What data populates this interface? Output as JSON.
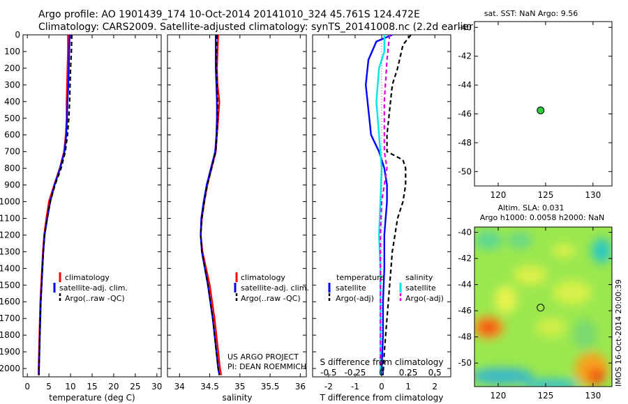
{
  "header": {
    "line1": "Argo profile: AO 1901439_174 10-Oct-2014 20141010_324 45.761S 124.472E",
    "line2": "Climatology: CARS2009. Satellite-adjusted climatology: synTS_20141008.nc (2.2d earlier)"
  },
  "colors": {
    "climatology": "#ff0000",
    "satellite": "#0000ff",
    "argo": "#000000",
    "sal_satellite": "#00e5e5",
    "sal_argo": "#e000e0",
    "point": "#2ecc40"
  },
  "chart_data": [
    {
      "type": "line",
      "panel": "temperature",
      "xlabel": "temperature (deg C)",
      "ylabel": "",
      "xlim": [
        -1,
        31
      ],
      "ylim": [
        2050,
        0
      ],
      "xticks": [
        0,
        5,
        10,
        15,
        20,
        25,
        30
      ],
      "yticks": [
        0,
        100,
        200,
        300,
        400,
        500,
        600,
        700,
        800,
        900,
        1000,
        1100,
        1200,
        1300,
        1400,
        1500,
        1600,
        1700,
        1800,
        1900,
        2000
      ],
      "legend": [
        "climatology",
        "satellite-adj. clim.",
        "Argo(..raw -QC)"
      ],
      "series": [
        {
          "name": "climatology",
          "color": "#ff0000",
          "dash": "",
          "points": [
            [
              9.4,
              0
            ],
            [
              9.4,
              100
            ],
            [
              9.3,
              200
            ],
            [
              9.2,
              300
            ],
            [
              9.1,
              400
            ],
            [
              9.1,
              500
            ],
            [
              8.9,
              600
            ],
            [
              8.5,
              700
            ],
            [
              7.5,
              800
            ],
            [
              6.2,
              900
            ],
            [
              5.0,
              1000
            ],
            [
              4.4,
              1100
            ],
            [
              3.9,
              1200
            ],
            [
              3.6,
              1300
            ],
            [
              3.4,
              1400
            ],
            [
              3.2,
              1500
            ],
            [
              3.0,
              1600
            ],
            [
              2.9,
              1700
            ],
            [
              2.8,
              1800
            ],
            [
              2.7,
              1900
            ],
            [
              2.6,
              2000
            ],
            [
              2.6,
              2040
            ]
          ]
        },
        {
          "name": "satellite-adj. clim.",
          "color": "#0000ff",
          "dash": "",
          "points": [
            [
              9.8,
              0
            ],
            [
              9.7,
              100
            ],
            [
              9.6,
              200
            ],
            [
              9.5,
              300
            ],
            [
              9.3,
              400
            ],
            [
              9.2,
              500
            ],
            [
              9.0,
              600
            ],
            [
              8.6,
              700
            ],
            [
              7.6,
              800
            ],
            [
              6.3,
              900
            ],
            [
              5.3,
              1000
            ],
            [
              4.6,
              1100
            ],
            [
              4.0,
              1200
            ],
            [
              3.7,
              1300
            ],
            [
              3.5,
              1400
            ],
            [
              3.3,
              1500
            ],
            [
              3.1,
              1600
            ],
            [
              3.0,
              1700
            ],
            [
              2.9,
              1800
            ],
            [
              2.8,
              1900
            ],
            [
              2.7,
              2000
            ],
            [
              2.7,
              2040
            ]
          ]
        },
        {
          "name": "Argo(..raw -QC)",
          "color": "#000000",
          "dash": "6,4",
          "points": [
            [
              10.3,
              0
            ],
            [
              10.2,
              100
            ],
            [
              10.0,
              200
            ],
            [
              9.9,
              300
            ],
            [
              9.8,
              400
            ],
            [
              9.6,
              500
            ],
            [
              9.3,
              600
            ],
            [
              8.8,
              700
            ],
            [
              7.8,
              800
            ],
            [
              6.4,
              900
            ],
            [
              5.3,
              1000
            ],
            [
              4.6,
              1100
            ],
            [
              4.0,
              1200
            ],
            [
              3.7,
              1300
            ],
            [
              3.5,
              1400
            ],
            [
              3.3,
              1500
            ],
            [
              3.1,
              1600
            ],
            [
              3.0,
              1700
            ],
            [
              2.9,
              1800
            ],
            [
              2.8,
              1900
            ],
            [
              2.7,
              2000
            ],
            [
              2.7,
              2040
            ]
          ]
        }
      ]
    },
    {
      "type": "line",
      "panel": "salinity",
      "xlabel": "salinity",
      "ylabel": "",
      "xlim": [
        33.8,
        36.1
      ],
      "ylim": [
        2050,
        0
      ],
      "xticks": [
        34,
        34.5,
        35,
        35.5,
        36
      ],
      "legend": [
        "climatology",
        "satellite-adj. clim.",
        "Argo(..raw -QC)"
      ],
      "annotation": [
        "US ARGO PROJECT",
        "PI: DEAN ROEMMICH"
      ],
      "series": [
        {
          "name": "climatology",
          "color": "#ff0000",
          "dash": "",
          "points": [
            [
              34.64,
              0
            ],
            [
              34.63,
              100
            ],
            [
              34.62,
              200
            ],
            [
              34.63,
              300
            ],
            [
              34.66,
              400
            ],
            [
              34.64,
              500
            ],
            [
              34.62,
              600
            ],
            [
              34.6,
              700
            ],
            [
              34.53,
              800
            ],
            [
              34.46,
              900
            ],
            [
              34.41,
              1000
            ],
            [
              34.37,
              1100
            ],
            [
              34.35,
              1200
            ],
            [
              34.38,
              1300
            ],
            [
              34.44,
              1400
            ],
            [
              34.5,
              1500
            ],
            [
              34.54,
              1600
            ],
            [
              34.58,
              1700
            ],
            [
              34.61,
              1800
            ],
            [
              34.64,
              1900
            ],
            [
              34.67,
              2000
            ],
            [
              34.69,
              2040
            ]
          ]
        },
        {
          "name": "satellite-adj. clim.",
          "color": "#0000ff",
          "dash": "",
          "points": [
            [
              34.6,
              0
            ],
            [
              34.6,
              100
            ],
            [
              34.6,
              200
            ],
            [
              34.61,
              300
            ],
            [
              34.62,
              400
            ],
            [
              34.62,
              500
            ],
            [
              34.61,
              600
            ],
            [
              34.59,
              700
            ],
            [
              34.52,
              800
            ],
            [
              34.45,
              900
            ],
            [
              34.4,
              1000
            ],
            [
              34.36,
              1100
            ],
            [
              34.35,
              1200
            ],
            [
              34.37,
              1300
            ],
            [
              34.42,
              1400
            ],
            [
              34.47,
              1500
            ],
            [
              34.51,
              1600
            ],
            [
              34.55,
              1700
            ],
            [
              34.58,
              1800
            ],
            [
              34.61,
              1900
            ],
            [
              34.64,
              2000
            ],
            [
              34.66,
              2040
            ]
          ]
        },
        {
          "name": "Argo(..raw -QC)",
          "color": "#000000",
          "dash": "6,4",
          "points": [
            [
              34.62,
              0
            ],
            [
              34.61,
              100
            ],
            [
              34.61,
              200
            ],
            [
              34.62,
              300
            ],
            [
              34.63,
              400
            ],
            [
              34.63,
              500
            ],
            [
              34.62,
              600
            ],
            [
              34.6,
              700
            ],
            [
              34.53,
              800
            ],
            [
              34.46,
              900
            ],
            [
              34.41,
              1000
            ],
            [
              34.37,
              1100
            ],
            [
              34.35,
              1200
            ],
            [
              34.37,
              1300
            ],
            [
              34.42,
              1400
            ],
            [
              34.47,
              1500
            ],
            [
              34.51,
              1600
            ],
            [
              34.55,
              1700
            ],
            [
              34.58,
              1800
            ],
            [
              34.61,
              1900
            ],
            [
              34.64,
              2000
            ],
            [
              34.66,
              2040
            ]
          ]
        }
      ]
    },
    {
      "type": "line",
      "panel": "difference",
      "xlabel": "T difference from climatology",
      "top_axis_label": "S difference from climatology",
      "xlim": [
        -2.6,
        2.6
      ],
      "ylim": [
        2050,
        0
      ],
      "xticks": [
        -2,
        -1,
        0,
        1,
        2
      ],
      "s_ticks": [
        {
          "label": "-0.5",
          "at": -2.0
        },
        {
          "label": "-0.25",
          "at": -1.0
        },
        {
          "label": "0",
          "at": 0
        },
        {
          "label": "0.25",
          "at": 1.0
        },
        {
          "label": "0.5",
          "at": 2.0
        }
      ],
      "legend_titles": [
        "temperature",
        "salinity"
      ],
      "legend_temperature": [
        "satellite",
        "Argo(-adj)"
      ],
      "legend_salinity": [
        "satellite",
        "Argo(-adj)"
      ],
      "series": [
        {
          "name": "T satellite",
          "color": "#0000ff",
          "dash": "",
          "points": [
            [
              0.4,
              0
            ],
            [
              -0.2,
              40
            ],
            [
              -0.5,
              150
            ],
            [
              -0.6,
              300
            ],
            [
              -0.5,
              450
            ],
            [
              -0.4,
              600
            ],
            [
              -0.1,
              700
            ],
            [
              0.1,
              800
            ],
            [
              0.2,
              900
            ],
            [
              0.2,
              1000
            ],
            [
              0.1,
              1200
            ],
            [
              0.1,
              1400
            ],
            [
              0.05,
              1600
            ],
            [
              0.05,
              1800
            ],
            [
              0,
              2000
            ],
            [
              0,
              2040
            ]
          ]
        },
        {
          "name": "T Argo(-adj)",
          "color": "#000000",
          "dash": "6,4",
          "points": [
            [
              1.1,
              0
            ],
            [
              0.8,
              60
            ],
            [
              0.6,
              200
            ],
            [
              0.4,
              300
            ],
            [
              0.3,
              450
            ],
            [
              0.2,
              600
            ],
            [
              0.2,
              700
            ],
            [
              0.8,
              750
            ],
            [
              0.9,
              800
            ],
            [
              0.9,
              900
            ],
            [
              0.8,
              1000
            ],
            [
              0.6,
              1100
            ],
            [
              0.5,
              1200
            ],
            [
              0.4,
              1300
            ],
            [
              0.3,
              1500
            ],
            [
              0.2,
              1700
            ],
            [
              0.1,
              1900
            ],
            [
              0.05,
              2040
            ]
          ]
        },
        {
          "name": "S satellite",
          "color": "#00e5e5",
          "dash": "",
          "points": [
            [
              0.1,
              0
            ],
            [
              0.1,
              100
            ],
            [
              -0.1,
              200
            ],
            [
              -0.2,
              400
            ],
            [
              -0.1,
              600
            ],
            [
              0,
              800
            ],
            [
              -0.05,
              1000
            ],
            [
              -0.1,
              1200
            ],
            [
              -0.05,
              1400
            ],
            [
              -0.05,
              1600
            ],
            [
              -0.05,
              1800
            ],
            [
              -0.05,
              2000
            ],
            [
              -0.05,
              2040
            ]
          ]
        },
        {
          "name": "S Argo(-adj)",
          "color": "#e000e0",
          "dash": "6,4",
          "points": [
            [
              0.3,
              0
            ],
            [
              0.2,
              150
            ],
            [
              0.1,
              400
            ],
            [
              0.1,
              700
            ],
            [
              0.2,
              800
            ],
            [
              0.1,
              900
            ],
            [
              0,
              1000
            ],
            [
              -0.05,
              1200
            ],
            [
              -0.05,
              1400
            ],
            [
              -0.05,
              1600
            ],
            [
              -0.05,
              1800
            ],
            [
              -0.05,
              2000
            ]
          ]
        }
      ]
    },
    {
      "type": "scatter",
      "panel": "sst_map",
      "title": "sat. SST: NaN Argo: 9.56",
      "xlim": [
        117.5,
        132
      ],
      "ylim": [
        -51,
        -39.6
      ],
      "xticks": [
        120,
        125,
        130
      ],
      "yticks": [
        -40,
        -42,
        -44,
        -46,
        -48,
        -50
      ],
      "points": [
        {
          "x": 124.472,
          "y": -45.761
        }
      ]
    },
    {
      "type": "heatmap",
      "panel": "sla_map",
      "title_lines": [
        "Altim. SLA: 0.031",
        "Argo h1000: 0.0058 h2000: NaN"
      ],
      "side_label": "IMOS 16-Oct-2014 20:00:39",
      "xlim": [
        117.5,
        132
      ],
      "ylim": [
        -51.8,
        -39.6
      ],
      "xticks": [
        120,
        125,
        130
      ],
      "yticks": [
        -40,
        -42,
        -44,
        -46,
        -48,
        -50
      ],
      "points": [
        {
          "x": 124.472,
          "y": -45.761
        }
      ]
    }
  ]
}
